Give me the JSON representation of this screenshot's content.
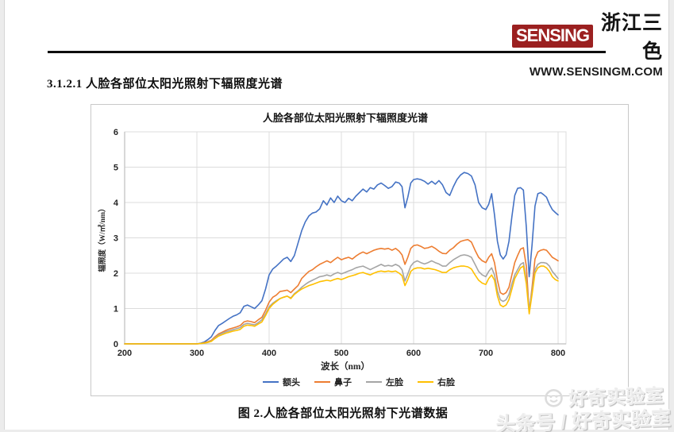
{
  "header": {
    "logo_text": "SENSING",
    "logo_cn": "浙江三色",
    "website": "WWW.SENSINGM.COM",
    "logo_bg": "#9b2020"
  },
  "section_title": "3.1.2.1 人脸各部位太阳光照射下辐照度光谱",
  "caption": "图 2.人脸各部位太阳光照射下光谱数据",
  "watermark": {
    "icon": "smiley-face",
    "line1": "好奇实验室",
    "line2": "头条号 / 好奇实验室"
  },
  "chart_data": {
    "type": "line",
    "title": "人脸各部位太阳光照射下辐照度光谱",
    "xlabel": "波长（nm）",
    "ylabel": "辐照度（W/㎡/nm）",
    "xlim": [
      200,
      800
    ],
    "ylim": [
      0,
      6
    ],
    "xticks": [
      200,
      300,
      400,
      500,
      600,
      700,
      800
    ],
    "yticks": [
      0,
      1,
      2,
      3,
      4,
      5,
      6
    ],
    "grid": true,
    "legend_position": "bottom",
    "grid_color": "#dcdcdc",
    "axis_color": "#bfbfbf",
    "x": [
      200,
      250,
      300,
      305,
      310,
      315,
      320,
      325,
      330,
      335,
      340,
      345,
      350,
      355,
      360,
      365,
      370,
      375,
      380,
      385,
      390,
      395,
      400,
      405,
      410,
      415,
      420,
      425,
      430,
      435,
      440,
      445,
      450,
      455,
      460,
      465,
      470,
      475,
      480,
      485,
      490,
      495,
      500,
      505,
      510,
      515,
      520,
      525,
      530,
      535,
      540,
      545,
      550,
      555,
      560,
      565,
      570,
      575,
      580,
      584,
      588,
      592,
      596,
      600,
      605,
      610,
      615,
      620,
      625,
      630,
      635,
      640,
      645,
      650,
      655,
      660,
      665,
      670,
      675,
      680,
      685,
      690,
      695,
      700,
      704,
      708,
      712,
      716,
      720,
      724,
      728,
      732,
      736,
      740,
      744,
      748,
      752,
      756,
      760,
      764,
      768,
      772,
      776,
      780,
      784,
      788,
      792,
      796,
      800
    ],
    "series": [
      {
        "name": "额头",
        "color": "#4472C4",
        "values": [
          0,
          0,
          0,
          0.02,
          0.05,
          0.12,
          0.2,
          0.38,
          0.52,
          0.58,
          0.65,
          0.72,
          0.78,
          0.82,
          0.88,
          1.06,
          1.1,
          1.05,
          1.0,
          1.1,
          1.22,
          1.55,
          1.95,
          2.12,
          2.2,
          2.3,
          2.4,
          2.45,
          2.33,
          2.5,
          2.85,
          3.2,
          3.45,
          3.62,
          3.7,
          3.73,
          3.82,
          4.05,
          3.93,
          4.13,
          4.0,
          4.18,
          4.05,
          4.0,
          4.12,
          4.05,
          4.18,
          4.28,
          4.38,
          4.3,
          4.42,
          4.38,
          4.5,
          4.55,
          4.48,
          4.4,
          4.45,
          4.58,
          4.55,
          4.45,
          3.85,
          4.15,
          4.55,
          4.65,
          4.67,
          4.65,
          4.6,
          4.52,
          4.6,
          4.52,
          4.62,
          4.5,
          4.28,
          4.2,
          4.45,
          4.65,
          4.78,
          4.85,
          4.82,
          4.75,
          4.5,
          4.0,
          3.85,
          3.8,
          3.95,
          4.25,
          3.65,
          2.9,
          2.52,
          2.4,
          2.52,
          2.9,
          3.6,
          4.2,
          4.4,
          4.42,
          4.35,
          3.3,
          1.9,
          2.8,
          3.9,
          4.25,
          4.28,
          4.22,
          4.15,
          3.95,
          3.8,
          3.72,
          3.65
        ]
      },
      {
        "name": "鼻子",
        "color": "#ED7D31",
        "values": [
          0,
          0,
          0,
          0.01,
          0.03,
          0.06,
          0.1,
          0.2,
          0.28,
          0.33,
          0.38,
          0.42,
          0.45,
          0.48,
          0.52,
          0.62,
          0.65,
          0.63,
          0.6,
          0.68,
          0.75,
          0.95,
          1.18,
          1.32,
          1.38,
          1.48,
          1.5,
          1.52,
          1.45,
          1.55,
          1.65,
          1.85,
          1.95,
          2.05,
          2.1,
          2.18,
          2.25,
          2.3,
          2.35,
          2.3,
          2.38,
          2.45,
          2.38,
          2.42,
          2.45,
          2.4,
          2.48,
          2.55,
          2.6,
          2.55,
          2.6,
          2.65,
          2.68,
          2.7,
          2.68,
          2.7,
          2.65,
          2.7,
          2.62,
          2.52,
          2.25,
          2.45,
          2.7,
          2.78,
          2.8,
          2.76,
          2.7,
          2.72,
          2.76,
          2.7,
          2.62,
          2.56,
          2.55,
          2.65,
          2.72,
          2.82,
          2.9,
          2.93,
          2.95,
          2.88,
          2.65,
          2.45,
          2.35,
          2.3,
          2.45,
          2.55,
          2.3,
          1.8,
          1.45,
          1.4,
          1.45,
          1.6,
          1.95,
          2.3,
          2.5,
          2.68,
          2.72,
          2.2,
          0.9,
          1.6,
          2.4,
          2.6,
          2.65,
          2.67,
          2.65,
          2.55,
          2.45,
          2.4,
          2.35
        ]
      },
      {
        "name": "左脸",
        "color": "#A5A5A5",
        "values": [
          0,
          0,
          0,
          0.01,
          0.02,
          0.05,
          0.08,
          0.17,
          0.25,
          0.3,
          0.34,
          0.37,
          0.4,
          0.43,
          0.46,
          0.55,
          0.58,
          0.56,
          0.54,
          0.6,
          0.68,
          0.85,
          1.05,
          1.15,
          1.22,
          1.28,
          1.32,
          1.35,
          1.3,
          1.42,
          1.5,
          1.6,
          1.68,
          1.75,
          1.8,
          1.85,
          1.9,
          1.92,
          1.95,
          1.92,
          1.98,
          2.02,
          1.98,
          2.02,
          2.06,
          2.1,
          2.15,
          2.18,
          2.2,
          2.15,
          2.1,
          2.15,
          2.2,
          2.25,
          2.2,
          2.22,
          2.2,
          2.25,
          2.2,
          2.1,
          1.78,
          1.98,
          2.2,
          2.3,
          2.35,
          2.3,
          2.26,
          2.3,
          2.35,
          2.3,
          2.26,
          2.2,
          2.2,
          2.3,
          2.38,
          2.44,
          2.5,
          2.52,
          2.5,
          2.45,
          2.25,
          2.05,
          1.95,
          1.9,
          2.05,
          2.15,
          1.95,
          1.5,
          1.25,
          1.2,
          1.25,
          1.4,
          1.7,
          1.95,
          2.1,
          2.25,
          2.3,
          1.8,
          0.95,
          1.5,
          2.1,
          2.25,
          2.3,
          2.3,
          2.28,
          2.2,
          2.05,
          1.95,
          1.85
        ]
      },
      {
        "name": "右脸",
        "color": "#FFC000",
        "values": [
          0,
          0,
          0,
          0.01,
          0.02,
          0.04,
          0.07,
          0.15,
          0.22,
          0.26,
          0.3,
          0.33,
          0.36,
          0.38,
          0.41,
          0.5,
          0.53,
          0.52,
          0.5,
          0.56,
          0.62,
          0.8,
          1.0,
          1.12,
          1.2,
          1.28,
          1.32,
          1.35,
          1.28,
          1.4,
          1.48,
          1.55,
          1.6,
          1.65,
          1.68,
          1.72,
          1.76,
          1.78,
          1.8,
          1.78,
          1.82,
          1.85,
          1.82,
          1.86,
          1.9,
          1.93,
          1.96,
          2.0,
          2.02,
          1.98,
          1.95,
          2.0,
          2.04,
          2.06,
          2.04,
          2.06,
          2.04,
          2.06,
          2.0,
          1.93,
          1.65,
          1.82,
          2.05,
          2.12,
          2.15,
          2.15,
          2.12,
          2.14,
          2.12,
          2.1,
          2.06,
          2.02,
          2.02,
          2.1,
          2.15,
          2.18,
          2.2,
          2.2,
          2.18,
          2.12,
          1.95,
          1.8,
          1.72,
          1.68,
          1.85,
          1.95,
          1.8,
          1.35,
          1.1,
          1.05,
          1.1,
          1.25,
          1.55,
          1.85,
          2.0,
          2.15,
          2.2,
          1.7,
          0.85,
          1.4,
          2.0,
          2.15,
          2.2,
          2.2,
          2.15,
          2.05,
          1.9,
          1.82,
          1.78
        ]
      }
    ]
  }
}
